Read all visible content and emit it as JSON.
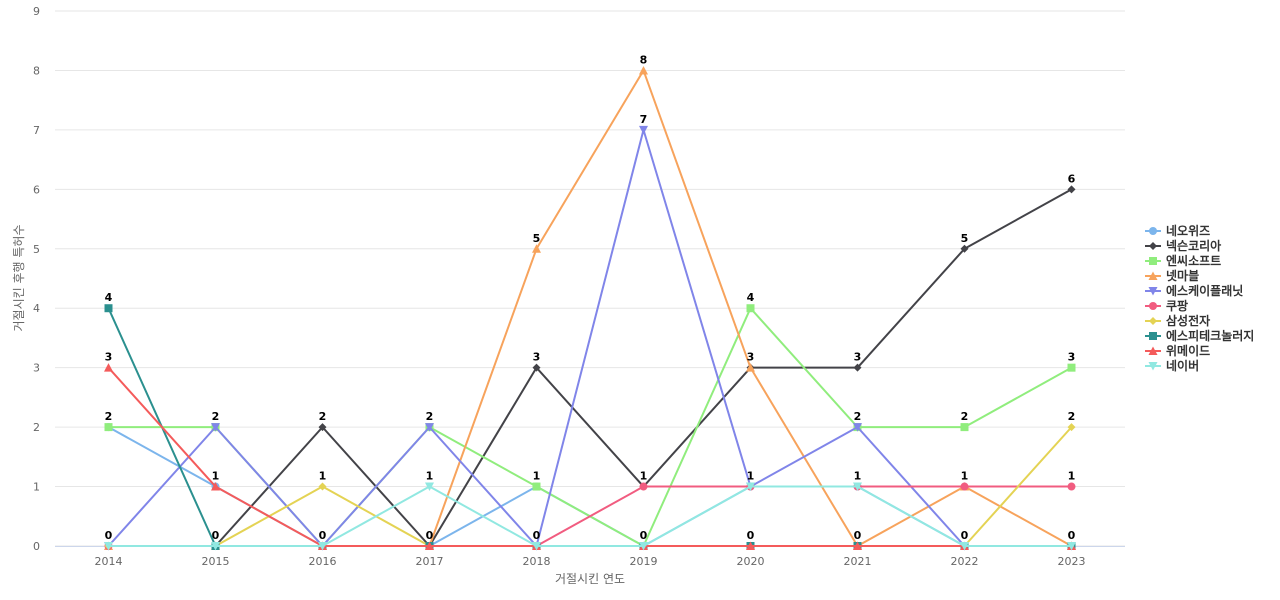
{
  "chart_data": {
    "type": "line",
    "xlabel": "거절시킨 연도",
    "ylabel": "거절시킨 후행 특허수",
    "ylim": [
      0,
      9
    ],
    "yticks": [
      0,
      1,
      2,
      3,
      4,
      5,
      6,
      7,
      8,
      9
    ],
    "categories": [
      "2014",
      "2015",
      "2016",
      "2017",
      "2018",
      "2019",
      "2020",
      "2021",
      "2022",
      "2023"
    ],
    "grid": true,
    "legend_position": "right",
    "series": [
      {
        "name": "네오위즈",
        "color": "#7cb5ec",
        "marker": "circle",
        "values": [
          2,
          1,
          0,
          0,
          1,
          0,
          1,
          1,
          0,
          0
        ]
      },
      {
        "name": "넥슨코리아",
        "color": "#434348",
        "marker": "diamond",
        "values": [
          0,
          0,
          2,
          0,
          3,
          1,
          3,
          3,
          5,
          6
        ]
      },
      {
        "name": "엔씨소프트",
        "color": "#90ed7d",
        "marker": "square",
        "values": [
          2,
          2,
          0,
          2,
          1,
          0,
          4,
          2,
          2,
          3
        ]
      },
      {
        "name": "넷마블",
        "color": "#f7a35c",
        "marker": "triangle",
        "values": [
          0,
          0,
          0,
          0,
          5,
          8,
          3,
          0,
          1,
          0
        ]
      },
      {
        "name": "에스케이플래닛",
        "color": "#8085e9",
        "marker": "triangle-down",
        "values": [
          0,
          2,
          0,
          2,
          0,
          7,
          1,
          2,
          0,
          0
        ]
      },
      {
        "name": "쿠팡",
        "color": "#f15c80",
        "marker": "circle",
        "values": [
          0,
          0,
          0,
          0,
          0,
          1,
          1,
          1,
          1,
          1
        ]
      },
      {
        "name": "삼성전자",
        "color": "#e4d354",
        "marker": "diamond",
        "values": [
          0,
          0,
          1,
          0,
          0,
          0,
          0,
          0,
          0,
          2
        ]
      },
      {
        "name": "에스피테크놀러지",
        "color": "#2b908f",
        "marker": "square",
        "values": [
          4,
          0,
          0,
          0,
          0,
          0,
          0,
          0,
          0,
          0
        ]
      },
      {
        "name": "위메이드",
        "color": "#f45b5b",
        "marker": "triangle",
        "values": [
          3,
          1,
          0,
          0,
          0,
          0,
          0,
          0,
          0,
          0
        ]
      },
      {
        "name": "네이버",
        "color": "#91e8e1",
        "marker": "triangle-down",
        "values": [
          0,
          0,
          0,
          1,
          0,
          0,
          1,
          1,
          0,
          0
        ]
      }
    ],
    "data_labels": [
      {
        "x": "2014",
        "y": 4,
        "text": "4"
      },
      {
        "x": "2014",
        "y": 3,
        "text": "3"
      },
      {
        "x": "2014",
        "y": 2,
        "text": "2"
      },
      {
        "x": "2014",
        "y": 0,
        "text": "0"
      },
      {
        "x": "2015",
        "y": 2,
        "text": "2"
      },
      {
        "x": "2015",
        "y": 1,
        "text": "1"
      },
      {
        "x": "2015",
        "y": 0,
        "text": "0"
      },
      {
        "x": "2016",
        "y": 2,
        "text": "2"
      },
      {
        "x": "2016",
        "y": 1,
        "text": "1"
      },
      {
        "x": "2016",
        "y": 0,
        "text": "0"
      },
      {
        "x": "2017",
        "y": 2,
        "text": "2"
      },
      {
        "x": "2017",
        "y": 1,
        "text": "1"
      },
      {
        "x": "2017",
        "y": 0,
        "text": "0"
      },
      {
        "x": "2018",
        "y": 5,
        "text": "5"
      },
      {
        "x": "2018",
        "y": 3,
        "text": "3"
      },
      {
        "x": "2018",
        "y": 1,
        "text": "1"
      },
      {
        "x": "2018",
        "y": 0,
        "text": "0"
      },
      {
        "x": "2019",
        "y": 8,
        "text": "8"
      },
      {
        "x": "2019",
        "y": 7,
        "text": "7"
      },
      {
        "x": "2019",
        "y": 1,
        "text": "1"
      },
      {
        "x": "2019",
        "y": 0,
        "text": "0"
      },
      {
        "x": "2020",
        "y": 4,
        "text": "4"
      },
      {
        "x": "2020",
        "y": 3,
        "text": "3"
      },
      {
        "x": "2020",
        "y": 1,
        "text": "1"
      },
      {
        "x": "2020",
        "y": 0,
        "text": "0"
      },
      {
        "x": "2021",
        "y": 3,
        "text": "3"
      },
      {
        "x": "2021",
        "y": 2,
        "text": "2"
      },
      {
        "x": "2021",
        "y": 1,
        "text": "1"
      },
      {
        "x": "2021",
        "y": 0,
        "text": "0"
      },
      {
        "x": "2022",
        "y": 5,
        "text": "5"
      },
      {
        "x": "2022",
        "y": 2,
        "text": "2"
      },
      {
        "x": "2022",
        "y": 1,
        "text": "1"
      },
      {
        "x": "2022",
        "y": 0,
        "text": "0"
      },
      {
        "x": "2023",
        "y": 6,
        "text": "6"
      },
      {
        "x": "2023",
        "y": 3,
        "text": "3"
      },
      {
        "x": "2023",
        "y": 2,
        "text": "2"
      },
      {
        "x": "2023",
        "y": 1,
        "text": "1"
      },
      {
        "x": "2023",
        "y": 0,
        "text": "0"
      }
    ]
  }
}
